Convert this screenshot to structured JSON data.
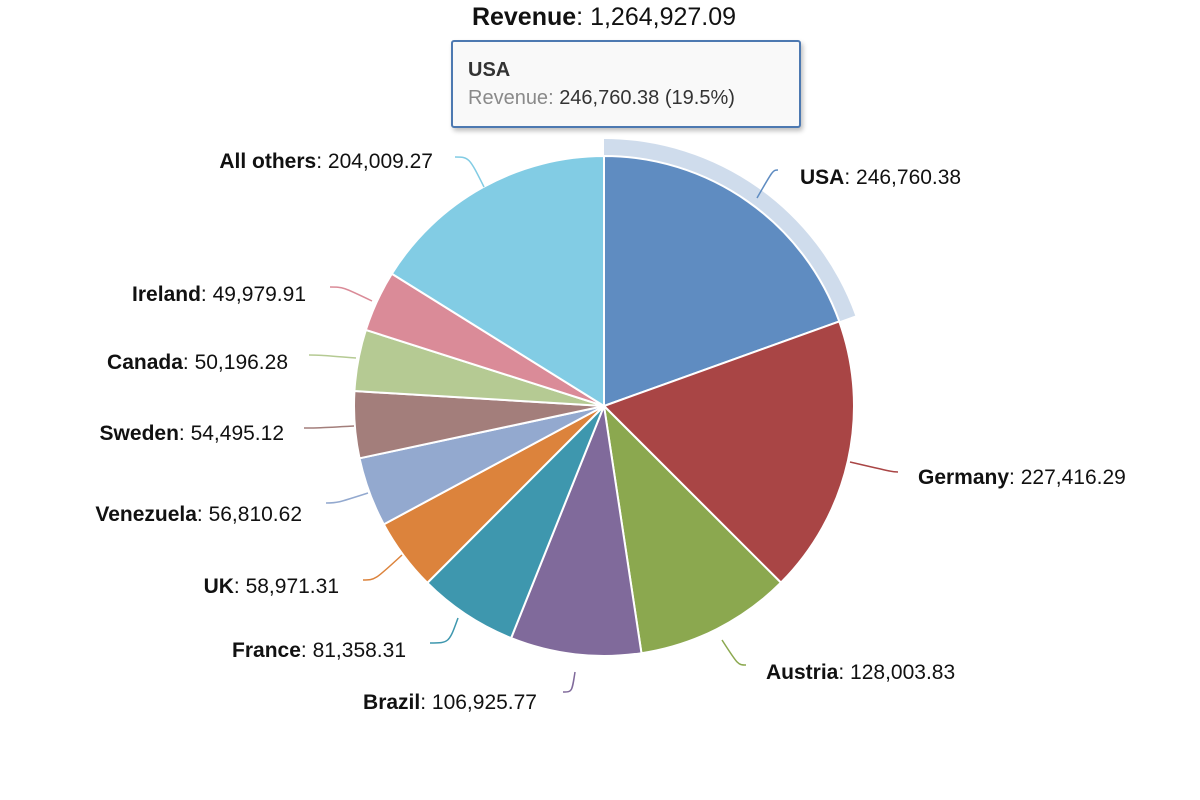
{
  "title": {
    "label": "Revenue",
    "value": "1,264,927.09"
  },
  "tooltip": {
    "name": "USA",
    "metric": "Revenue",
    "value": "246,760.38",
    "percent": "(19.5%)"
  },
  "chart_data": {
    "type": "pie",
    "title": "Revenue: 1,264,927.09",
    "total": 1264927.09,
    "highlighted": "USA",
    "slices": [
      {
        "name": "USA",
        "value": 246760.38,
        "label": "246,760.38",
        "color": "#5f8cc1"
      },
      {
        "name": "Germany",
        "value": 227416.29,
        "label": "227,416.29",
        "color": "#a94545"
      },
      {
        "name": "Austria",
        "value": 128003.83,
        "label": "128,003.83",
        "color": "#8ba84f"
      },
      {
        "name": "Brazil",
        "value": 106925.77,
        "label": "106,925.77",
        "color": "#806a9b"
      },
      {
        "name": "France",
        "value": 81358.31,
        "label": "81,358.31",
        "color": "#3e97ae"
      },
      {
        "name": "UK",
        "value": 58971.31,
        "label": "58,971.31",
        "color": "#dc833c"
      },
      {
        "name": "Venezuela",
        "value": 56810.62,
        "label": "56,810.62",
        "color": "#93a9cf"
      },
      {
        "name": "Sweden",
        "value": 54495.12,
        "label": "54,495.12",
        "color": "#a37e7b"
      },
      {
        "name": "Canada",
        "value": 50196.28,
        "label": "50,196.28",
        "color": "#b5ca93"
      },
      {
        "name": "Ireland",
        "value": 49979.91,
        "label": "49,979.91",
        "color": "#da8b98"
      },
      {
        "name": "All others",
        "value": 204009.27,
        "label": "204,009.27",
        "color": "#82cce4"
      }
    ]
  }
}
